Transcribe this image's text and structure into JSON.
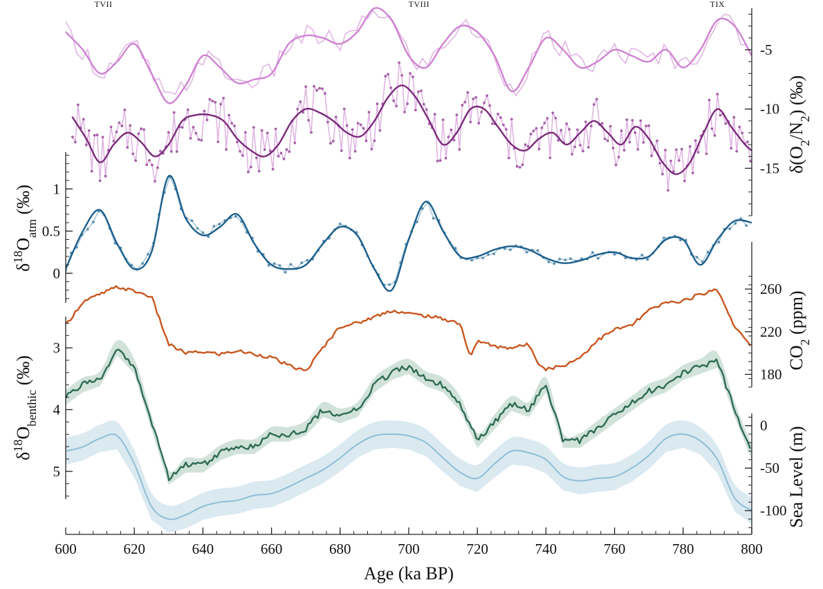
{
  "chart_data": {
    "type": "line",
    "x_axis": {
      "label": "Age (ka BP)",
      "range": [
        600,
        800
      ],
      "ticks": [
        600,
        620,
        640,
        660,
        680,
        700,
        720,
        740,
        760,
        780,
        800
      ],
      "tick_labels": [
        "600",
        "620",
        "640",
        "660",
        "680",
        "700",
        "720",
        "740",
        "760",
        "780",
        "800"
      ]
    },
    "termination_labels": [
      {
        "text": "TVII",
        "x": 611
      },
      {
        "text": "TVIII",
        "x": 703
      },
      {
        "text": "TIX",
        "x": 790
      }
    ],
    "panels": [
      {
        "id": "d_o2n2",
        "axis_label_parts": [
          "δ(O",
          "2",
          "/N",
          "2",
          ") (‰)"
        ],
        "axis_side": "right",
        "axis_range": [
          -19,
          -1.5
        ],
        "ticks": [
          -5,
          -10,
          -15
        ],
        "tick_labels": [
          "-5",
          "-10",
          "-15"
        ],
        "series": [
          {
            "color": "#cf82d2",
            "x": [
              600,
              605,
              610,
              615,
              620,
              625,
              630,
              635,
              640,
              645,
              650,
              655,
              660,
              665,
              670,
              675,
              680,
              685,
              690,
              695,
              700,
              705,
              710,
              715,
              720,
              725,
              730,
              735,
              740,
              745,
              750,
              755,
              760,
              765,
              770,
              775,
              780,
              785,
              790,
              795,
              800
            ],
            "y": [
              -3.5,
              -5.0,
              -7.0,
              -6.0,
              -4.5,
              -7.0,
              -9.5,
              -8.0,
              -5.5,
              -6.5,
              -7.8,
              -7.5,
              -7.0,
              -4.5,
              -3.8,
              -4.0,
              -4.5,
              -3.5,
              -1.5,
              -2.5,
              -5.5,
              -6.5,
              -4.5,
              -3.0,
              -3.5,
              -5.5,
              -8.5,
              -6.5,
              -4.0,
              -5.0,
              -6.5,
              -6.0,
              -5.0,
              -5.5,
              -6.0,
              -5.0,
              -6.5,
              -5.0,
              -2.5,
              -3.0,
              -5.5
            ]
          },
          {
            "color": "#7a2a7a",
            "x": [
              602,
              606,
              610,
              614,
              618,
              622,
              626,
              630,
              634,
              638,
              642,
              646,
              650,
              654,
              658,
              662,
              666,
              670,
              674,
              678,
              682,
              686,
              690,
              694,
              698,
              702,
              706,
              710,
              714,
              718,
              722,
              726,
              730,
              734,
              738,
              742,
              746,
              750,
              754,
              758,
              762,
              766,
              770,
              774,
              778,
              782,
              786,
              790,
              794,
              798,
              800
            ],
            "y": [
              -10.7,
              -12.5,
              -14.5,
              -13.0,
              -12.0,
              -12.8,
              -14.0,
              -13.0,
              -11.0,
              -10.5,
              -10.5,
              -11.0,
              -12.5,
              -13.5,
              -14.0,
              -13.0,
              -11.0,
              -10.0,
              -10.3,
              -11.0,
              -12.0,
              -12.3,
              -11.0,
              -9.0,
              -8.0,
              -9.0,
              -11.0,
              -13.0,
              -12.0,
              -10.0,
              -10.0,
              -11.5,
              -13.0,
              -13.5,
              -12.5,
              -12.0,
              -13.0,
              -12.0,
              -11.0,
              -12.0,
              -13.0,
              -11.5,
              -12.5,
              -14.5,
              -15.5,
              -14.5,
              -12.0,
              -10.0,
              -11.5,
              -13.0,
              -13.5
            ]
          }
        ]
      },
      {
        "id": "d18o_atm",
        "axis_label_parts": [
          "δ",
          "18",
          "O",
          "atm",
          " (‰)"
        ],
        "axis_side": "left",
        "axis_range": [
          -0.35,
          1.42
        ],
        "ticks": [
          0,
          0.5,
          1
        ],
        "tick_labels": [
          "0",
          "0.5",
          "1"
        ],
        "series": [
          {
            "color": "#1c5f8c",
            "x": [
              600,
              605,
              610,
              615,
              620,
              625,
              630,
              635,
              640,
              645,
              650,
              655,
              660,
              665,
              670,
              675,
              680,
              685,
              690,
              695,
              700,
              705,
              710,
              715,
              720,
              725,
              730,
              735,
              740,
              745,
              750,
              755,
              760,
              765,
              770,
              775,
              780,
              785,
              790,
              795,
              800
            ],
            "y": [
              0.05,
              0.5,
              0.75,
              0.35,
              0.05,
              0.25,
              1.15,
              0.65,
              0.45,
              0.55,
              0.7,
              0.35,
              0.1,
              0.05,
              0.1,
              0.35,
              0.55,
              0.45,
              0.05,
              -0.2,
              0.4,
              0.85,
              0.5,
              0.2,
              0.2,
              0.28,
              0.32,
              0.28,
              0.18,
              0.12,
              0.15,
              0.22,
              0.25,
              0.18,
              0.2,
              0.4,
              0.4,
              0.1,
              0.4,
              0.62,
              0.6
            ]
          }
        ]
      },
      {
        "id": "co2",
        "axis_label_parts": [
          "CO",
          "2",
          " (ppm)"
        ],
        "axis_side": "right",
        "axis_range": [
          168,
          275
        ],
        "ticks": [
          180,
          220,
          260
        ],
        "tick_labels": [
          "180",
          "220",
          "260"
        ],
        "series": [
          {
            "color": "#c8561f",
            "x": [
              600,
              605,
              610,
              615,
              620,
              625,
              630,
              635,
              640,
              645,
              650,
              655,
              660,
              665,
              670,
              675,
              680,
              685,
              690,
              695,
              700,
              705,
              710,
              715,
              718,
              720,
              725,
              730,
              735,
              738,
              740,
              745,
              750,
              755,
              760,
              765,
              770,
              775,
              780,
              785,
              790,
              795,
              800
            ],
            "y": [
              226,
              248,
              255,
              262,
              258,
              253,
              208,
              200,
              201,
              199,
              202,
              199,
              196,
              188,
              183,
              205,
              225,
              228,
              234,
              240,
              237,
              235,
              232,
              228,
              195,
              212,
              206,
              205,
              208,
              190,
              185,
              188,
              196,
              212,
              222,
              226,
              240,
              247,
              249,
              255,
              260,
              225,
              205
            ]
          }
        ]
      },
      {
        "id": "d18o_benthic",
        "axis_label_parts": [
          "δ",
          "18",
          "O",
          "benthic",
          " (‰)"
        ],
        "axis_side": "left",
        "axis_range": [
          5.45,
          2.55
        ],
        "ticks": [
          3,
          4,
          5
        ],
        "tick_labels": [
          "3",
          "4",
          "5"
        ],
        "series": [
          {
            "color": "#2e6b55",
            "x": [
              600,
              605,
              610,
              615,
              620,
              625,
              630,
              635,
              640,
              645,
              650,
              655,
              660,
              665,
              670,
              675,
              680,
              685,
              690,
              695,
              700,
              705,
              710,
              715,
              720,
              725,
              730,
              735,
              740,
              745,
              750,
              755,
              760,
              765,
              770,
              775,
              780,
              785,
              790,
              795,
              800
            ],
            "y": [
              3.8,
              3.6,
              3.5,
              3.0,
              3.3,
              4.2,
              5.1,
              4.9,
              4.9,
              4.7,
              4.6,
              4.6,
              4.4,
              4.4,
              4.3,
              4.0,
              4.1,
              4.0,
              3.6,
              3.4,
              3.3,
              3.5,
              3.6,
              3.9,
              4.5,
              4.2,
              3.9,
              4.0,
              3.6,
              4.5,
              4.5,
              4.3,
              4.1,
              3.9,
              3.7,
              3.6,
              3.4,
              3.3,
              3.2,
              4.0,
              4.7
            ]
          }
        ]
      },
      {
        "id": "sea_level",
        "axis_label_parts": [
          "Sea Level (m)"
        ],
        "axis_side": "right",
        "axis_range": [
          -128,
          25
        ],
        "ticks": [
          0,
          -50,
          -100
        ],
        "tick_labels": [
          "0",
          "-50",
          "-100"
        ],
        "series": [
          {
            "color": "#8dbfd6",
            "x": [
              600,
              605,
              610,
              615,
              620,
              625,
              630,
              635,
              640,
              645,
              650,
              655,
              660,
              665,
              670,
              675,
              680,
              685,
              690,
              695,
              700,
              705,
              710,
              715,
              720,
              725,
              730,
              735,
              740,
              745,
              750,
              755,
              760,
              765,
              770,
              775,
              780,
              785,
              790,
              795,
              800
            ],
            "y": [
              -30,
              -25,
              -15,
              -12,
              -45,
              -95,
              -110,
              -105,
              -95,
              -90,
              -88,
              -82,
              -80,
              -72,
              -62,
              -52,
              -38,
              -22,
              -12,
              -10,
              -12,
              -20,
              -38,
              -55,
              -62,
              -45,
              -30,
              -32,
              -40,
              -60,
              -65,
              -62,
              -60,
              -50,
              -35,
              -15,
              -10,
              -18,
              -40,
              -85,
              -100
            ]
          }
        ]
      }
    ]
  }
}
